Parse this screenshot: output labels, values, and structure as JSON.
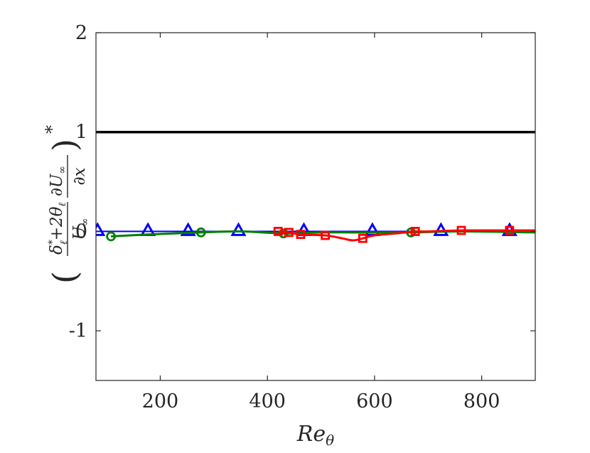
{
  "chart_data": {
    "type": "line",
    "xlabel": "Re",
    "xlabel_sub": "θ",
    "ylabel": {
      "num_top": "δ",
      "num_top_sup": "*",
      "num_top_sub": "ℓ",
      "num_plus": "+2θ",
      "num_plus_sub": "ℓ",
      "den": "U",
      "den_sub": "∞",
      "frac2_num": "∂U",
      "frac2_num_sub": "∞",
      "frac2_den": "∂x",
      "outer_sup": "*"
    },
    "xlim": [
      80,
      900
    ],
    "ylim": [
      -1.5,
      2
    ],
    "xticks": [
      200,
      400,
      600,
      800
    ],
    "xtick_labels": [
      "200",
      "400",
      "600",
      "800"
    ],
    "yticks": [
      -1,
      0,
      1,
      2
    ],
    "ytick_labels": [
      "-1",
      "0",
      "1",
      "2"
    ],
    "grid": false,
    "reference_line": {
      "y": 1,
      "color": "#000000"
    },
    "series": [
      {
        "color": "#0000ff",
        "marker": "triangle",
        "line_x": [
          80,
          900
        ],
        "line_y": [
          0.0,
          0.0
        ],
        "marker_x": [
          83,
          177,
          252,
          346,
          468,
          596,
          724,
          852
        ],
        "marker_y": [
          0.0,
          0.0,
          0.0,
          0.0,
          0.0,
          0.0,
          0.0,
          0.0
        ]
      },
      {
        "color": "#008000",
        "marker": "circle",
        "line_x": [
          108,
          180,
          276,
          350,
          430,
          500,
          560,
          668,
          760,
          900
        ],
        "line_y": [
          -0.05,
          -0.03,
          -0.01,
          0.0,
          -0.02,
          -0.01,
          -0.01,
          -0.01,
          0.0,
          -0.01
        ],
        "marker_x": [
          108,
          276,
          430,
          668
        ],
        "marker_y": [
          -0.05,
          -0.01,
          -0.02,
          -0.01
        ]
      },
      {
        "color": "#ff0000",
        "marker": "square",
        "line_x": [
          420,
          440,
          462,
          508,
          540,
          560,
          578,
          600,
          640,
          676,
          700,
          762,
          800,
          852,
          900
        ],
        "line_y": [
          0.0,
          -0.01,
          -0.03,
          -0.04,
          -0.07,
          -0.09,
          -0.07,
          -0.04,
          -0.02,
          0.0,
          0.0,
          0.01,
          0.01,
          0.01,
          0.01
        ],
        "marker_x": [
          420,
          440,
          462,
          508,
          578,
          676,
          762,
          852
        ],
        "marker_y": [
          0.0,
          -0.01,
          -0.03,
          -0.04,
          -0.07,
          0.0,
          0.01,
          0.01
        ]
      }
    ]
  }
}
